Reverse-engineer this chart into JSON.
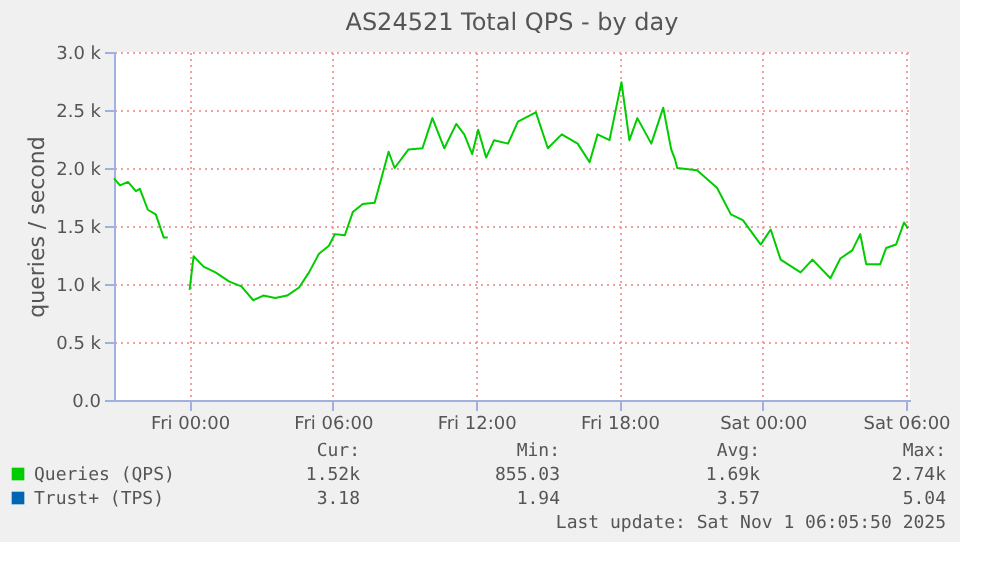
{
  "chart_data": {
    "type": "line",
    "title": "AS24521 Total QPS - by day",
    "ylabel": "queries / second",
    "x": [
      "2025-10-30T20:50",
      "2025-10-30T21:05",
      "2025-10-30T21:25",
      "2025-10-30T21:45",
      "2025-10-30T21:55",
      "2025-10-30T22:15",
      "2025-10-30T22:35",
      "2025-10-30T22:55",
      "2025-10-30T23:05",
      "2025-10-30T23:30",
      "2025-10-31T00:00",
      "2025-10-31T00:10",
      "2025-10-31T00:35",
      "2025-10-31T01:05",
      "2025-10-31T01:40",
      "2025-10-31T02:10",
      "2025-10-31T02:40",
      "2025-10-31T03:05",
      "2025-10-31T03:35",
      "2025-10-31T04:05",
      "2025-10-31T04:35",
      "2025-10-31T05:00",
      "2025-10-31T05:25",
      "2025-10-31T05:50",
      "2025-10-31T06:05",
      "2025-10-31T06:30",
      "2025-10-31T06:50",
      "2025-10-31T07:15",
      "2025-10-31T07:45",
      "2025-10-31T08:20",
      "2025-10-31T08:35",
      "2025-10-31T09:10",
      "2025-10-31T09:45",
      "2025-10-31T10:10",
      "2025-10-31T10:40",
      "2025-10-31T11:10",
      "2025-10-31T11:30",
      "2025-10-31T11:50",
      "2025-10-31T12:05",
      "2025-10-31T12:25",
      "2025-10-31T12:45",
      "2025-10-31T13:20",
      "2025-10-31T13:45",
      "2025-10-31T14:30",
      "2025-10-31T15:00",
      "2025-10-31T15:35",
      "2025-10-31T16:15",
      "2025-10-31T16:45",
      "2025-10-31T17:05",
      "2025-10-31T17:35",
      "2025-10-31T18:05",
      "2025-10-31T18:25",
      "2025-10-31T18:45",
      "2025-10-31T19:20",
      "2025-10-31T19:50",
      "2025-10-31T20:10",
      "2025-10-31T20:20",
      "2025-10-31T20:25",
      "2025-10-31T21:15",
      "2025-10-31T22:05",
      "2025-10-31T22:40",
      "2025-10-31T23:10",
      "2025-10-31T23:55",
      "2025-11-01T00:20",
      "2025-11-01T00:45",
      "2025-11-01T01:35",
      "2025-11-01T02:05",
      "2025-11-01T02:50",
      "2025-11-01T03:15",
      "2025-11-01T03:45",
      "2025-11-01T04:05",
      "2025-11-01T04:20",
      "2025-11-01T04:55",
      "2025-11-01T05:10",
      "2025-11-01T05:35",
      "2025-11-01T05:55",
      "2025-11-01T06:05"
    ],
    "series": [
      {
        "name": "Queries (QPS)",
        "color": "#00cc00",
        "values": [
          1910,
          1850,
          1880,
          1800,
          1820,
          1640,
          1600,
          1400,
          1400,
          null,
          950,
          1240,
          1150,
          1100,
          1020,
          980,
          860,
          900,
          880,
          900,
          970,
          1100,
          1260,
          1330,
          1430,
          1420,
          1620,
          1690,
          1700,
          2140,
          2000,
          2160,
          2170,
          2430,
          2170,
          2380,
          2290,
          2120,
          2330,
          2090,
          2240,
          2210,
          2400,
          2480,
          2170,
          2290,
          2210,
          2050,
          2290,
          2240,
          2740,
          2240,
          2430,
          2210,
          2520,
          2160,
          2070,
          2000,
          1980,
          1830,
          1600,
          1550,
          1340,
          1470,
          1210,
          1100,
          1210,
          1050,
          1220,
          1290,
          1430,
          1170,
          1170,
          1310,
          1340,
          1530,
          1480
        ]
      },
      {
        "name": "Trust+ (TPS)",
        "color": "#0066b3",
        "values": [
          null,
          null,
          null,
          null,
          null,
          null,
          null,
          null,
          null,
          null,
          null,
          null,
          null,
          null,
          null,
          null,
          null,
          null,
          null,
          null,
          null,
          null,
          null,
          null,
          null,
          null,
          null,
          null,
          null,
          null,
          null,
          null,
          null,
          null,
          null,
          null,
          null,
          null,
          null,
          null,
          null,
          null,
          null,
          null,
          null,
          null,
          null,
          null,
          null,
          null,
          null,
          null,
          null,
          null,
          null,
          null,
          null,
          null,
          null,
          null,
          null,
          null,
          null,
          null,
          null,
          null,
          null,
          null,
          null,
          null,
          null,
          null,
          null,
          null,
          null,
          null,
          null
        ]
      }
    ],
    "xlim": [
      "2025-10-30T20:50",
      "2025-11-01T06:10"
    ],
    "xticks": [
      {
        "value": "2025-10-31T00:00",
        "label": "Fri 00:00"
      },
      {
        "value": "2025-10-31T06:00",
        "label": "Fri 06:00"
      },
      {
        "value": "2025-10-31T12:00",
        "label": "Fri 12:00"
      },
      {
        "value": "2025-10-31T18:00",
        "label": "Fri 18:00"
      },
      {
        "value": "2025-11-01T00:00",
        "label": "Sat 00:00"
      },
      {
        "value": "2025-11-01T06:00",
        "label": "Sat 06:00"
      }
    ],
    "ylim": [
      0,
      3000
    ],
    "yticks": [
      {
        "value": 0,
        "label": "0.0"
      },
      {
        "value": 500,
        "label": "0.5 k"
      },
      {
        "value": 1000,
        "label": "1.0 k"
      },
      {
        "value": 1500,
        "label": "1.5 k"
      },
      {
        "value": 2000,
        "label": "2.0 k"
      },
      {
        "value": 2500,
        "label": "2.5 k"
      },
      {
        "value": 3000,
        "label": "3.0 k"
      }
    ],
    "grid": true,
    "legend": "bottom",
    "marker": "none",
    "line_style": "solid",
    "annotations": [
      "Cur:",
      "Min:",
      "Avg:",
      "Max:",
      "1.52k",
      "855.03",
      "1.69k",
      "2.74k",
      "3.18",
      "1.94",
      "3.57",
      "5.04",
      "Last update: Sat Nov  1 06:05:50 2025"
    ]
  }
}
